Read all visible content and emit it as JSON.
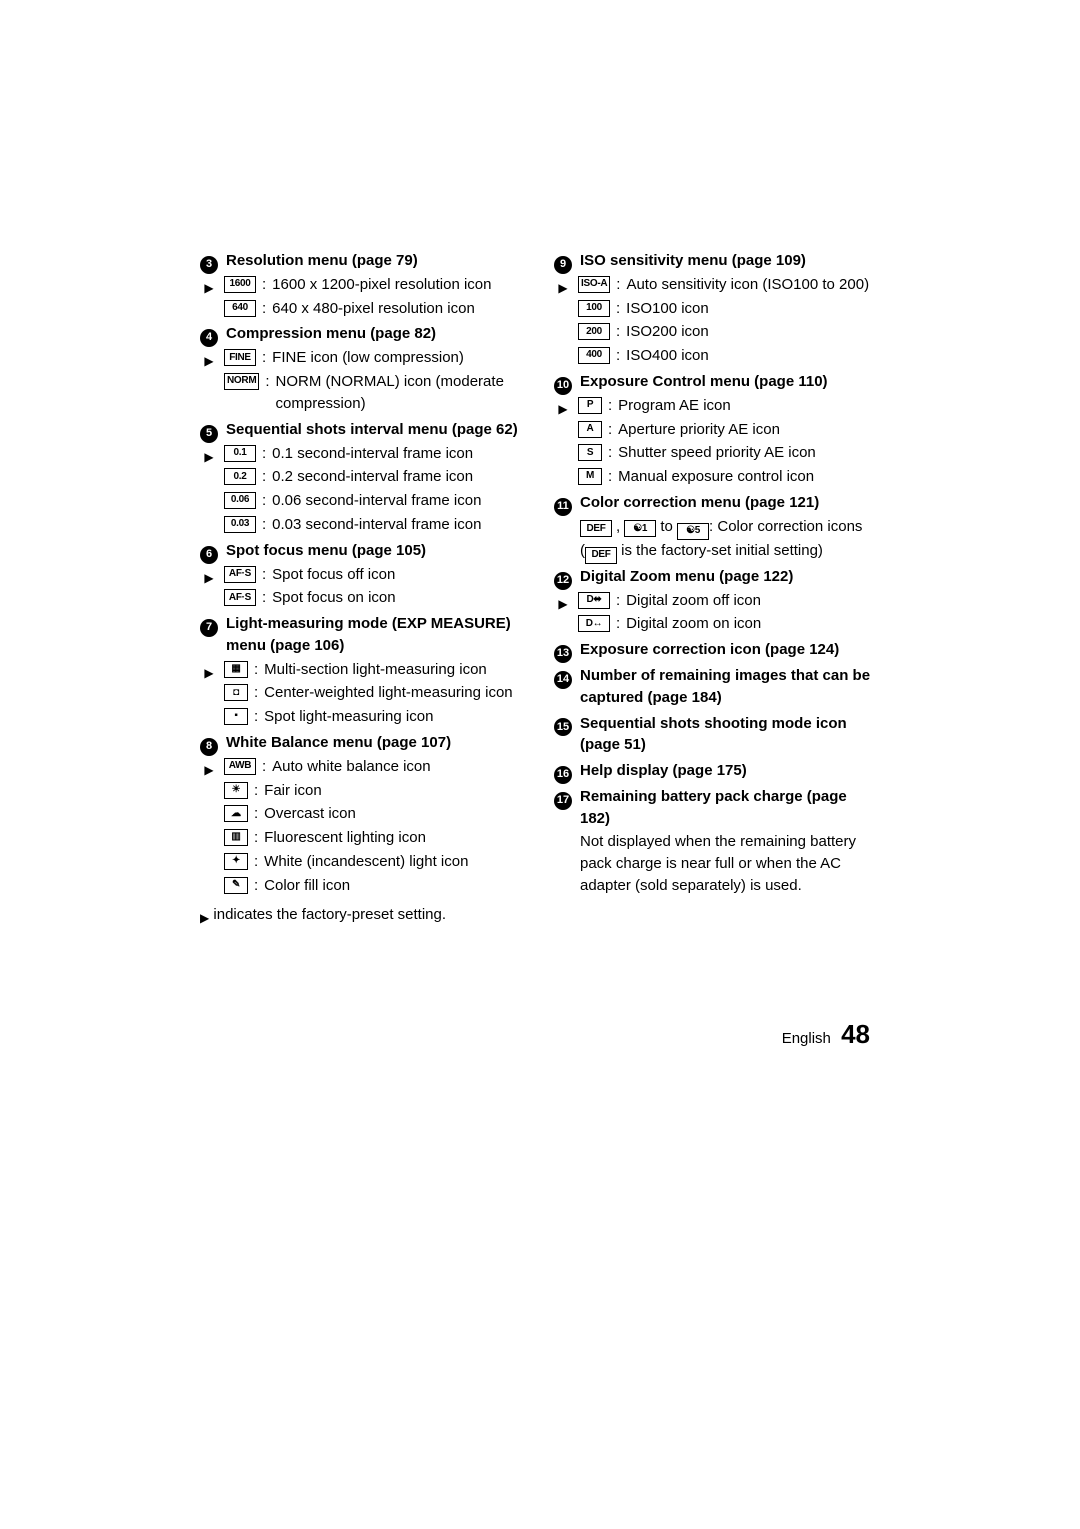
{
  "footer": {
    "language": "English",
    "page": "48"
  },
  "footnote_marker": "▶",
  "footnote_text": "indicates the factory-preset setting.",
  "left": [
    {
      "num": "3",
      "title": "Resolution menu (page 79)",
      "items": [
        {
          "default": true,
          "icon": "1600",
          "desc": "1600 x 1200-pixel resolution icon"
        },
        {
          "default": false,
          "icon": "640",
          "desc": "640 x 480-pixel resolution icon"
        }
      ]
    },
    {
      "num": "4",
      "title": "Compression menu (page 82)",
      "items": [
        {
          "default": true,
          "icon": "FINE",
          "desc": "FINE icon (low compression)"
        },
        {
          "default": false,
          "icon": "NORM",
          "desc": "NORM (NORMAL) icon (moderate compression)"
        }
      ]
    },
    {
      "num": "5",
      "title": "Sequential shots interval menu (page 62)",
      "items": [
        {
          "default": true,
          "icon": "0.1",
          "desc": "0.1 second-interval frame icon"
        },
        {
          "default": false,
          "icon": "0.2",
          "desc": "0.2 second-interval frame icon"
        },
        {
          "default": false,
          "icon": "0.06",
          "desc": "0.06 second-interval frame icon"
        },
        {
          "default": false,
          "icon": "0.03",
          "desc": "0.03 second-interval frame icon"
        }
      ]
    },
    {
      "num": "6",
      "title": "Spot focus menu (page 105)",
      "items": [
        {
          "default": true,
          "icon": "AF·S",
          "desc": "Spot focus off icon"
        },
        {
          "default": false,
          "icon": "AF·S",
          "desc": "Spot focus on icon"
        }
      ]
    },
    {
      "num": "7",
      "title": "Light-measuring mode (EXP MEASURE) menu (page 106)",
      "items": [
        {
          "default": true,
          "icon": "▦",
          "square": true,
          "desc": "Multi-section light-measuring icon"
        },
        {
          "default": false,
          "icon": "◘",
          "square": true,
          "desc": "Center-weighted light-measuring icon"
        },
        {
          "default": false,
          "icon": "▪",
          "square": true,
          "desc": "Spot light-measuring icon"
        }
      ]
    },
    {
      "num": "8",
      "title": "White Balance menu (page 107)",
      "items": [
        {
          "default": true,
          "icon": "AWB",
          "desc": "Auto white balance icon"
        },
        {
          "default": false,
          "icon": "☀",
          "square": true,
          "desc": "Fair icon"
        },
        {
          "default": false,
          "icon": "☁",
          "square": true,
          "desc": "Overcast icon"
        },
        {
          "default": false,
          "icon": "▥",
          "square": true,
          "desc": "Fluorescent lighting icon"
        },
        {
          "default": false,
          "icon": "✦",
          "square": true,
          "desc": "White (incandescent) light icon"
        },
        {
          "default": false,
          "icon": "✎",
          "square": true,
          "desc": "Color fill icon"
        }
      ]
    }
  ],
  "right": [
    {
      "num": "9",
      "title": "ISO sensitivity menu (page 109)",
      "items": [
        {
          "default": true,
          "icon": "ISO-A",
          "desc": "Auto sensitivity icon (ISO100 to 200)"
        },
        {
          "default": false,
          "icon": "100",
          "desc": "ISO100 icon"
        },
        {
          "default": false,
          "icon": "200",
          "desc": "ISO200 icon"
        },
        {
          "default": false,
          "icon": "400",
          "desc": "ISO400 icon"
        }
      ]
    },
    {
      "num": "10",
      "title": "Exposure Control menu (page 110)",
      "items": [
        {
          "default": true,
          "icon": "P",
          "narrow": true,
          "desc": "Program AE icon"
        },
        {
          "default": false,
          "icon": "A",
          "narrow": true,
          "desc": "Aperture priority AE icon"
        },
        {
          "default": false,
          "icon": "S",
          "narrow": true,
          "desc": "Shutter speed priority AE icon"
        },
        {
          "default": false,
          "icon": "M",
          "narrow": true,
          "desc": "Manual exposure control icon"
        }
      ]
    },
    {
      "num": "11",
      "title": "Color correction menu (page 121)",
      "custom": "color_correction"
    },
    {
      "num": "12",
      "title": "Digital Zoom menu (page 122)",
      "items": [
        {
          "default": true,
          "icon": "D⬌",
          "desc": "Digital zoom off icon"
        },
        {
          "default": false,
          "icon": "D↔",
          "desc": "Digital zoom on icon"
        }
      ]
    },
    {
      "num": "13",
      "title": "Exposure correction icon (page 124)"
    },
    {
      "num": "14",
      "title": "Number of remaining images that can be captured (page 184)"
    },
    {
      "num": "15",
      "title": "Sequential shots shooting mode icon (page 51)"
    },
    {
      "num": "16",
      "title": "Help display (page 175)"
    },
    {
      "num": "17",
      "title": "Remaining battery pack charge (page 182)",
      "body": "Not displayed when the remaining battery pack charge is near full or when the AC adapter (sold separately) is used."
    }
  ],
  "color_correction": {
    "icons_line_prefix_icons": [
      "DEF",
      "☯1"
    ],
    "icons_line_middle": " to ",
    "icons_line_suffix_icon": "☯5",
    "icons_line_tail": ": Color correction icons",
    "paren_open": "(",
    "paren_icon": "DEF",
    "paren_tail": " is the factory-set initial setting)"
  }
}
